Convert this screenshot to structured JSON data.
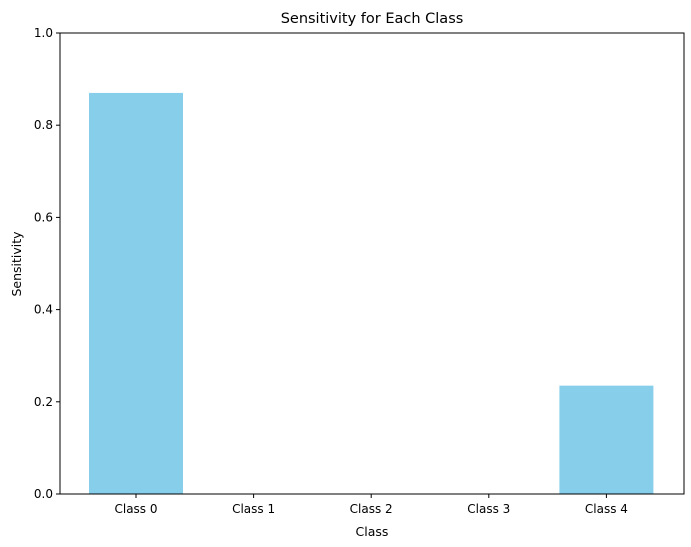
{
  "chart_data": {
    "type": "bar",
    "title": "Sensitivity for Each Class",
    "xlabel": "Class",
    "ylabel": "Sensitivity",
    "categories": [
      "Class 0",
      "Class 1",
      "Class 2",
      "Class 3",
      "Class 4"
    ],
    "values": [
      0.87,
      0.0,
      0.0,
      0.0,
      0.235
    ],
    "ylim": [
      0,
      1.0
    ],
    "yticks": [
      "0.0",
      "0.2",
      "0.4",
      "0.6",
      "0.8",
      "1.0"
    ],
    "grid": false,
    "bar_color": "#87ceeb",
    "axis_color": "#000000"
  }
}
